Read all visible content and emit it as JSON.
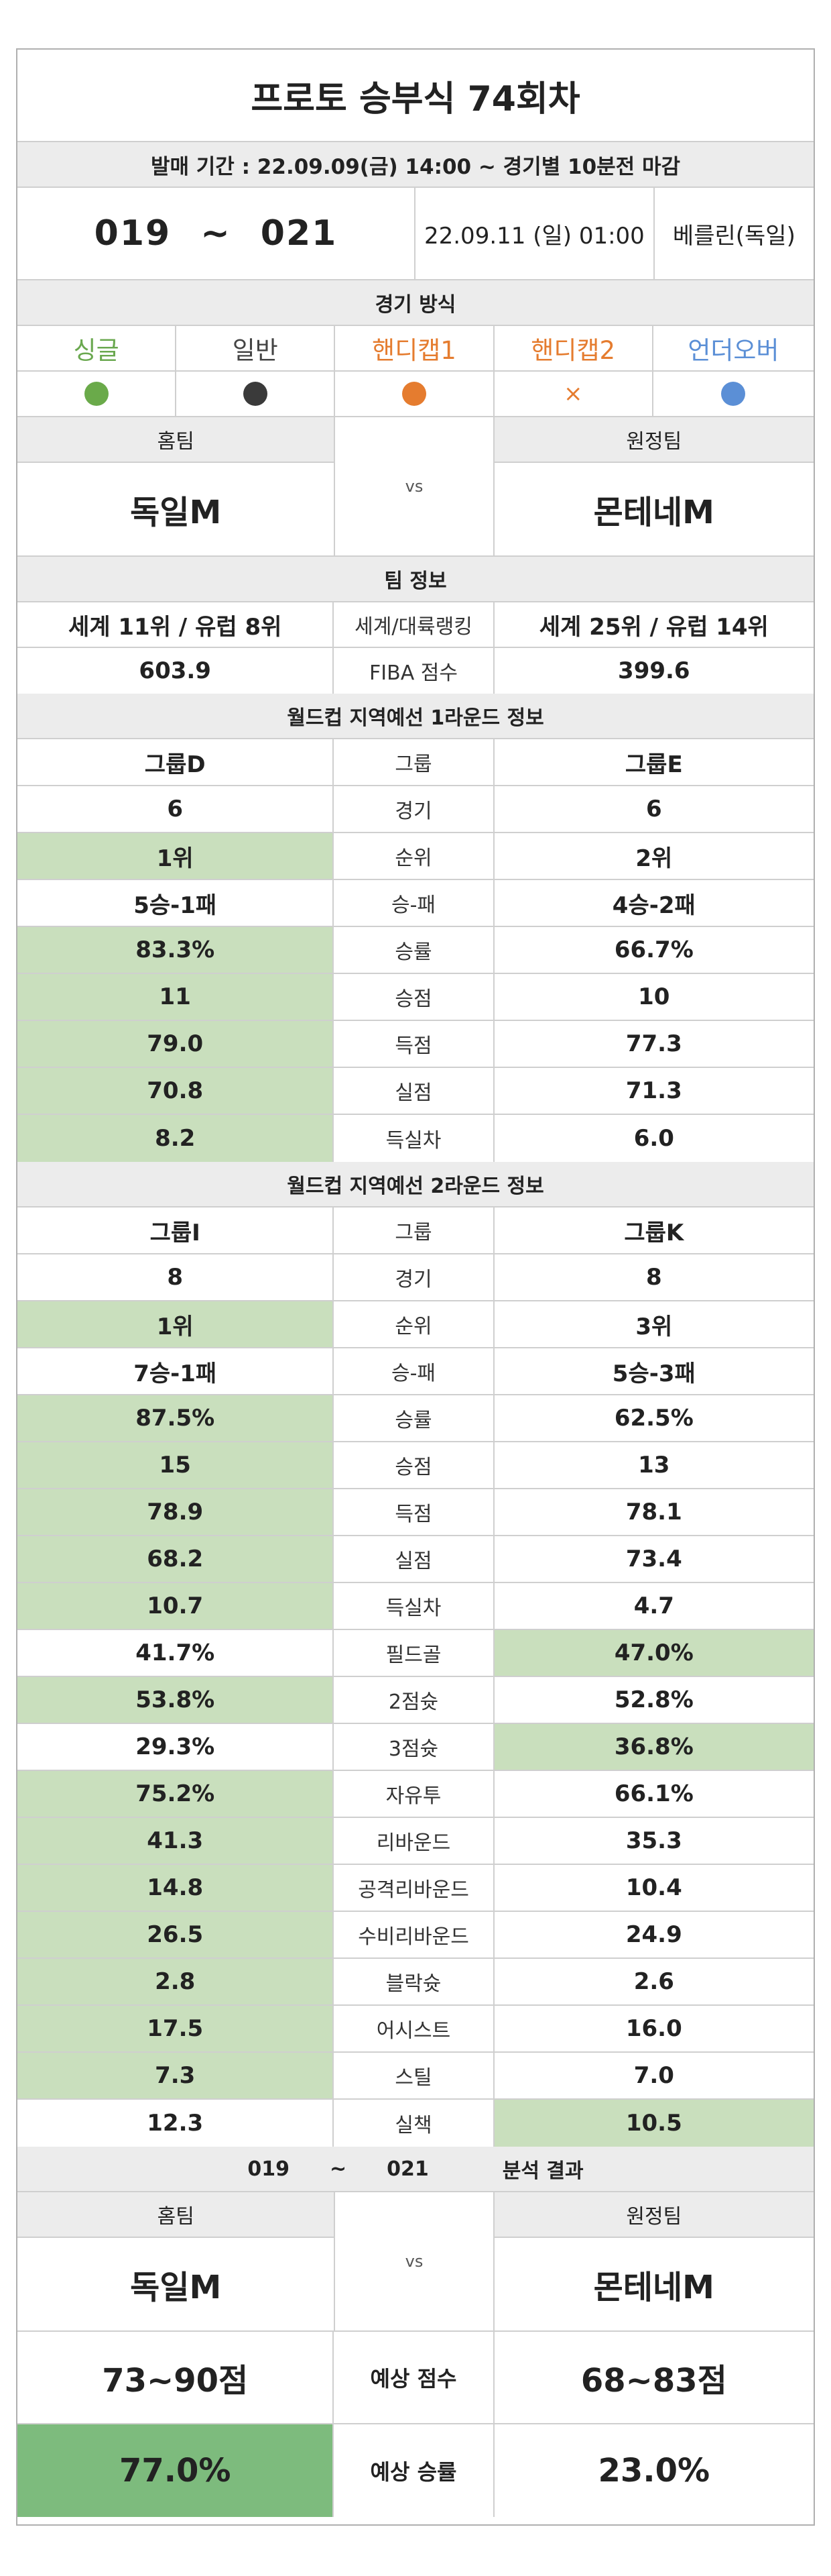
{
  "title": "프로토 승부식 74회차",
  "period": "발매 기간 : 22.09.09(금) 14:00 ~ 경기별 10분전 마감",
  "match": {
    "code_from": "019",
    "code_sep": "~",
    "code_to": "021",
    "datetime": "22.09.11 (일) 01:00",
    "venue": "베를린(독일)"
  },
  "modes": {
    "title": "경기 방식",
    "items": [
      {
        "label": "싱글",
        "color": "#6aa84f",
        "mark": "dot"
      },
      {
        "label": "일반",
        "color": "#444444",
        "mark": "dot"
      },
      {
        "label": "핸디캡1",
        "color": "#e57c2f",
        "mark": "dot"
      },
      {
        "label": "핸디캡2",
        "color": "#e57c2f",
        "mark": "×"
      },
      {
        "label": "언더오버",
        "color": "#5b8fd6",
        "mark": "dot"
      }
    ]
  },
  "teams": {
    "home_label": "홈팀",
    "away_label": "원정팀",
    "vs": "vs",
    "home": "독일M",
    "away": "몬테네M"
  },
  "team_info": {
    "title": "팀 정보",
    "rows": [
      {
        "home": "세계 11위 / 유럽 8위",
        "label": "세계/대륙랭킹",
        "away": "세계 25위 / 유럽 14위"
      },
      {
        "home": "603.9",
        "label": "FIBA 점수",
        "away": "399.6"
      }
    ]
  },
  "round1": {
    "title": "월드컵 지역예선 1라운드 정보",
    "rows": [
      {
        "home": "그룹D",
        "label": "그룹",
        "away": "그룹E"
      },
      {
        "home": "6",
        "label": "경기",
        "away": "6"
      },
      {
        "home": "1위",
        "label": "순위",
        "away": "2위",
        "hl": "home"
      },
      {
        "home": "5승-1패",
        "label": "승-패",
        "away": "4승-2패"
      },
      {
        "home": "83.3%",
        "label": "승률",
        "away": "66.7%",
        "hl": "home"
      },
      {
        "home": "11",
        "label": "승점",
        "away": "10",
        "hl": "home"
      },
      {
        "home": "79.0",
        "label": "득점",
        "away": "77.3",
        "hl": "home"
      },
      {
        "home": "70.8",
        "label": "실점",
        "away": "71.3",
        "hl": "home"
      },
      {
        "home": "8.2",
        "label": "득실차",
        "away": "6.0",
        "hl": "home"
      }
    ]
  },
  "round2": {
    "title": "월드컵 지역예선 2라운드 정보",
    "rows": [
      {
        "home": "그룹I",
        "label": "그룹",
        "away": "그룹K"
      },
      {
        "home": "8",
        "label": "경기",
        "away": "8"
      },
      {
        "home": "1위",
        "label": "순위",
        "away": "3위",
        "hl": "home"
      },
      {
        "home": "7승-1패",
        "label": "승-패",
        "away": "5승-3패"
      },
      {
        "home": "87.5%",
        "label": "승률",
        "away": "62.5%",
        "hl": "home"
      },
      {
        "home": "15",
        "label": "승점",
        "away": "13",
        "hl": "home"
      },
      {
        "home": "78.9",
        "label": "득점",
        "away": "78.1",
        "hl": "home"
      },
      {
        "home": "68.2",
        "label": "실점",
        "away": "73.4",
        "hl": "home"
      },
      {
        "home": "10.7",
        "label": "득실차",
        "away": "4.7",
        "hl": "home"
      },
      {
        "home": "41.7%",
        "label": "필드골",
        "away": "47.0%",
        "hl": "away"
      },
      {
        "home": "53.8%",
        "label": "2점슛",
        "away": "52.8%",
        "hl": "home"
      },
      {
        "home": "29.3%",
        "label": "3점슛",
        "away": "36.8%",
        "hl": "away"
      },
      {
        "home": "75.2%",
        "label": "자유투",
        "away": "66.1%",
        "hl": "home"
      },
      {
        "home": "41.3",
        "label": "리바운드",
        "away": "35.3",
        "hl": "home"
      },
      {
        "home": "14.8",
        "label": "공격리바운드",
        "away": "10.4",
        "hl": "home"
      },
      {
        "home": "26.5",
        "label": "수비리바운드",
        "away": "24.9",
        "hl": "home"
      },
      {
        "home": "2.8",
        "label": "블락슛",
        "away": "2.6",
        "hl": "home"
      },
      {
        "home": "17.5",
        "label": "어시스트",
        "away": "16.0",
        "hl": "home"
      },
      {
        "home": "7.3",
        "label": "스틸",
        "away": "7.0",
        "hl": "home"
      },
      {
        "home": "12.3",
        "label": "실책",
        "away": "10.5",
        "hl": "away"
      }
    ]
  },
  "result": {
    "code_from": "019",
    "code_sep": "~",
    "code_to": "021",
    "title": "분석 결과",
    "score_label": "예상 점수",
    "home_score": "73~90점",
    "away_score": "68~83점",
    "winrate_label": "예상 승률",
    "home_winrate": "77.0%",
    "away_winrate": "23.0%"
  },
  "colors": {
    "highlight": "#c9dfbd",
    "highlight_strong": "#7dbb7d",
    "header_gray": "#ececec"
  }
}
